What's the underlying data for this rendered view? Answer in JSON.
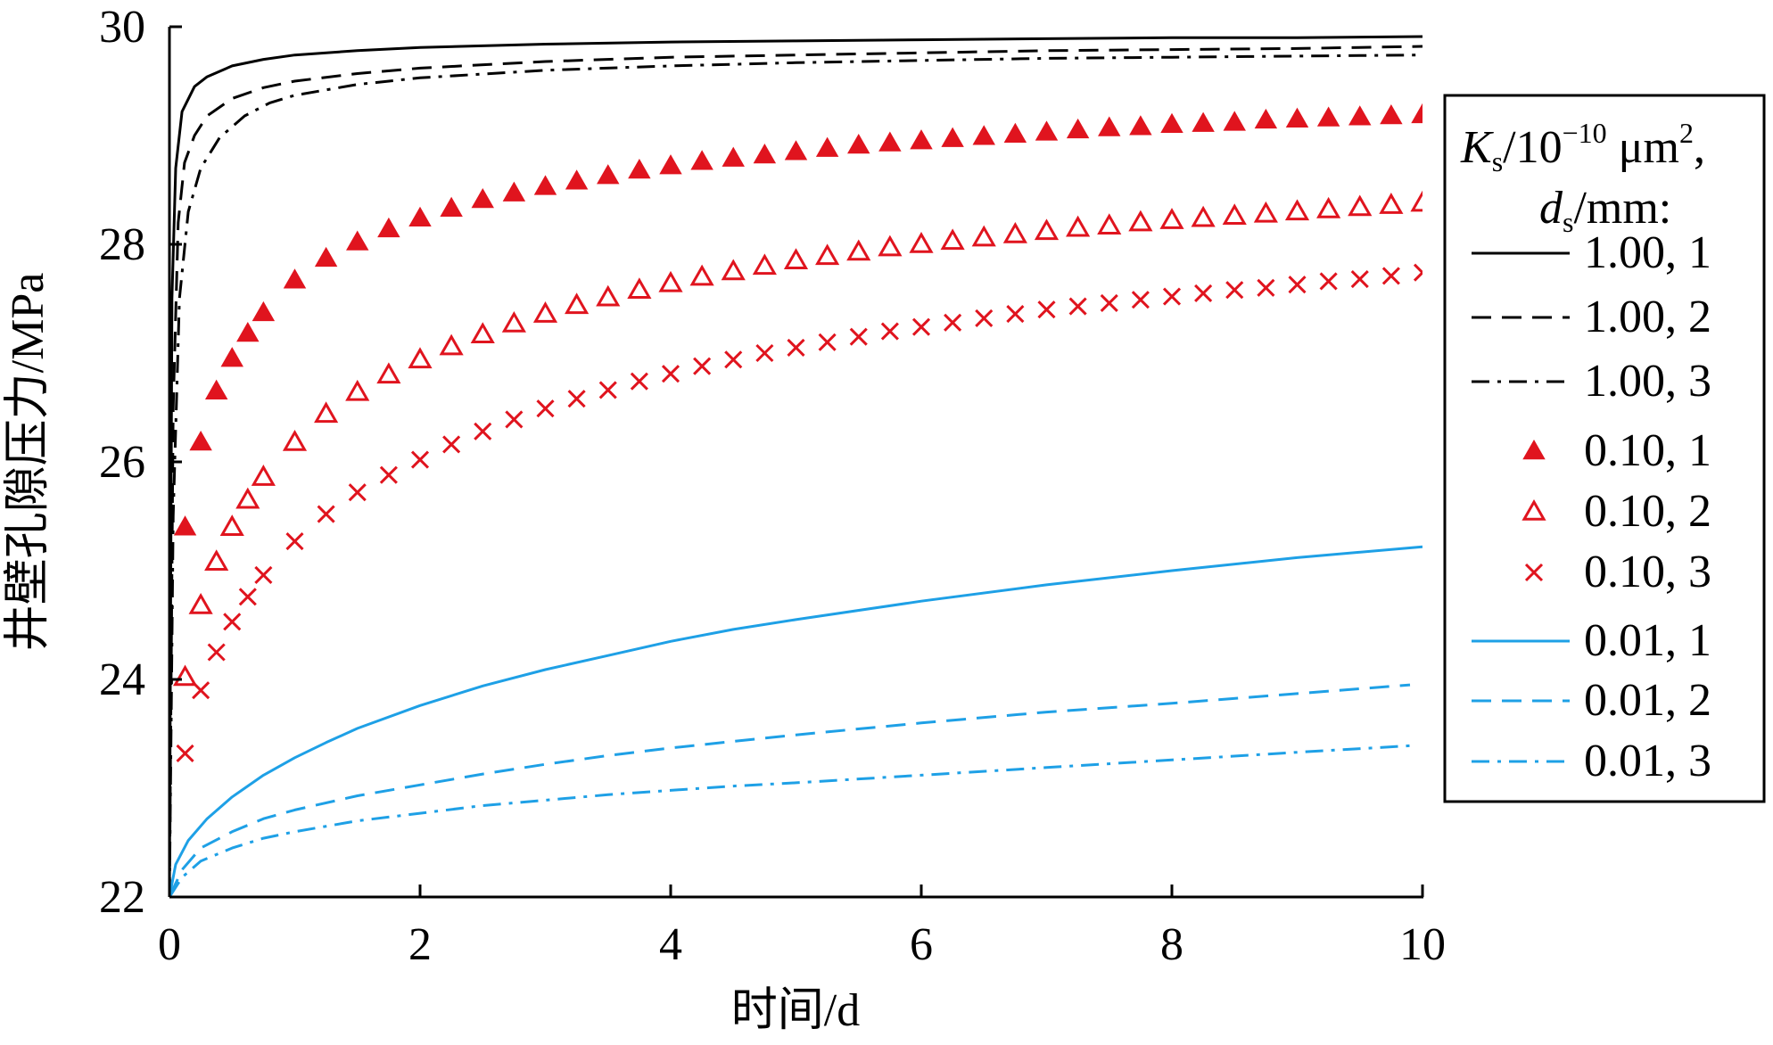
{
  "chart_data": {
    "type": "line",
    "title": "",
    "xlabel": "时间/d",
    "ylabel": "井壁孔隙压力/MPa",
    "xlim": [
      0,
      10
    ],
    "ylim": [
      22,
      30
    ],
    "x_ticks": [
      0,
      2,
      4,
      6,
      8,
      10
    ],
    "y_ticks": [
      22,
      24,
      26,
      28,
      30
    ],
    "grid": false,
    "legend": {
      "position": "right",
      "title_line1": "Ks/10−10 μm2,",
      "title_line2": "ds/mm:"
    },
    "series": [
      {
        "name": "1.00, 1",
        "color": "#000000",
        "style": "solid",
        "points": [
          [
            0,
            22
          ],
          [
            0.02,
            27.5
          ],
          [
            0.05,
            28.7
          ],
          [
            0.1,
            29.22
          ],
          [
            0.2,
            29.45
          ],
          [
            0.3,
            29.54
          ],
          [
            0.5,
            29.64
          ],
          [
            0.75,
            29.7
          ],
          [
            1,
            29.74
          ],
          [
            1.5,
            29.78
          ],
          [
            2,
            29.81
          ],
          [
            3,
            29.84
          ],
          [
            4,
            29.86
          ],
          [
            5,
            29.87
          ],
          [
            6,
            29.88
          ],
          [
            7,
            29.89
          ],
          [
            8,
            29.9
          ],
          [
            9,
            29.9
          ],
          [
            10,
            29.91
          ]
        ]
      },
      {
        "name": "1.00, 2",
        "color": "#000000",
        "style": "dashed",
        "points": [
          [
            0,
            22
          ],
          [
            0.03,
            26.5
          ],
          [
            0.07,
            28.2
          ],
          [
            0.12,
            28.75
          ],
          [
            0.2,
            29.0
          ],
          [
            0.3,
            29.18
          ],
          [
            0.5,
            29.34
          ],
          [
            0.75,
            29.44
          ],
          [
            1,
            29.5
          ],
          [
            1.5,
            29.57
          ],
          [
            2,
            29.62
          ],
          [
            3,
            29.68
          ],
          [
            4,
            29.72
          ],
          [
            5,
            29.74
          ],
          [
            6,
            29.76
          ],
          [
            7,
            29.78
          ],
          [
            8,
            29.79
          ],
          [
            9,
            29.8
          ],
          [
            10,
            29.82
          ]
        ]
      },
      {
        "name": "1.00, 3",
        "color": "#000000",
        "style": "dashdot",
        "points": [
          [
            0,
            22
          ],
          [
            0.03,
            25.5
          ],
          [
            0.08,
            27.5
          ],
          [
            0.15,
            28.3
          ],
          [
            0.25,
            28.7
          ],
          [
            0.4,
            28.98
          ],
          [
            0.6,
            29.18
          ],
          [
            0.8,
            29.3
          ],
          [
            1,
            29.37
          ],
          [
            1.5,
            29.47
          ],
          [
            2,
            29.53
          ],
          [
            3,
            29.6
          ],
          [
            4,
            29.64
          ],
          [
            5,
            29.67
          ],
          [
            6,
            29.69
          ],
          [
            7,
            29.71
          ],
          [
            8,
            29.72
          ],
          [
            9,
            29.73
          ],
          [
            10,
            29.74
          ]
        ]
      },
      {
        "name": "0.10, 1",
        "color": "#e0141e",
        "style": "marker-triangle-filled",
        "points": [
          [
            0.125,
            25.4
          ],
          [
            0.25,
            26.18
          ],
          [
            0.375,
            26.65
          ],
          [
            0.5,
            26.95
          ],
          [
            0.625,
            27.18
          ],
          [
            0.75,
            27.37
          ],
          [
            1,
            27.67
          ],
          [
            1.25,
            27.87
          ],
          [
            1.5,
            28.02
          ],
          [
            1.75,
            28.14
          ],
          [
            2,
            28.24
          ],
          [
            2.25,
            28.33
          ],
          [
            2.5,
            28.41
          ],
          [
            2.75,
            28.47
          ],
          [
            3,
            28.53
          ],
          [
            3.25,
            28.58
          ],
          [
            3.5,
            28.63
          ],
          [
            3.75,
            28.68
          ],
          [
            4,
            28.72
          ],
          [
            4.25,
            28.76
          ],
          [
            4.5,
            28.79
          ],
          [
            4.75,
            28.82
          ],
          [
            5,
            28.85
          ],
          [
            5.25,
            28.88
          ],
          [
            5.5,
            28.91
          ],
          [
            5.75,
            28.93
          ],
          [
            6,
            28.95
          ],
          [
            6.25,
            28.97
          ],
          [
            6.5,
            28.99
          ],
          [
            6.75,
            29.01
          ],
          [
            7,
            29.03
          ],
          [
            7.25,
            29.05
          ],
          [
            7.5,
            29.07
          ],
          [
            7.75,
            29.08
          ],
          [
            8,
            29.1
          ],
          [
            8.25,
            29.11
          ],
          [
            8.5,
            29.12
          ],
          [
            8.75,
            29.14
          ],
          [
            9,
            29.15
          ],
          [
            9.25,
            29.16
          ],
          [
            9.5,
            29.17
          ],
          [
            9.75,
            29.18
          ],
          [
            10,
            29.19
          ]
        ]
      },
      {
        "name": "0.10, 2",
        "color": "#e0141e",
        "style": "marker-triangle-open",
        "points": [
          [
            0.125,
            24.02
          ],
          [
            0.25,
            24.68
          ],
          [
            0.375,
            25.08
          ],
          [
            0.5,
            25.4
          ],
          [
            0.625,
            25.65
          ],
          [
            0.75,
            25.86
          ],
          [
            1,
            26.18
          ],
          [
            1.25,
            26.44
          ],
          [
            1.5,
            26.64
          ],
          [
            1.75,
            26.8
          ],
          [
            2,
            26.94
          ],
          [
            2.25,
            27.06
          ],
          [
            2.5,
            27.17
          ],
          [
            2.75,
            27.27
          ],
          [
            3,
            27.36
          ],
          [
            3.25,
            27.44
          ],
          [
            3.5,
            27.51
          ],
          [
            3.75,
            27.58
          ],
          [
            4,
            27.64
          ],
          [
            4.25,
            27.7
          ],
          [
            4.5,
            27.75
          ],
          [
            4.75,
            27.8
          ],
          [
            5,
            27.85
          ],
          [
            5.25,
            27.89
          ],
          [
            5.5,
            27.93
          ],
          [
            5.75,
            27.97
          ],
          [
            6,
            28.0
          ],
          [
            6.25,
            28.03
          ],
          [
            6.5,
            28.06
          ],
          [
            6.75,
            28.09
          ],
          [
            7,
            28.12
          ],
          [
            7.25,
            28.15
          ],
          [
            7.5,
            28.17
          ],
          [
            7.75,
            28.2
          ],
          [
            8,
            28.22
          ],
          [
            8.25,
            28.24
          ],
          [
            8.5,
            28.26
          ],
          [
            8.75,
            28.28
          ],
          [
            9,
            28.3
          ],
          [
            9.25,
            28.32
          ],
          [
            9.5,
            28.34
          ],
          [
            9.75,
            28.36
          ],
          [
            10,
            28.38
          ]
        ]
      },
      {
        "name": "0.10, 3",
        "color": "#e0141e",
        "style": "marker-cross",
        "points": [
          [
            0.125,
            23.32
          ],
          [
            0.25,
            23.9
          ],
          [
            0.375,
            24.25
          ],
          [
            0.5,
            24.53
          ],
          [
            0.625,
            24.76
          ],
          [
            0.75,
            24.96
          ],
          [
            1,
            25.27
          ],
          [
            1.25,
            25.52
          ],
          [
            1.5,
            25.72
          ],
          [
            1.75,
            25.88
          ],
          [
            2,
            26.02
          ],
          [
            2.25,
            26.16
          ],
          [
            2.5,
            26.28
          ],
          [
            2.75,
            26.39
          ],
          [
            3,
            26.49
          ],
          [
            3.25,
            26.58
          ],
          [
            3.5,
            26.66
          ],
          [
            3.75,
            26.74
          ],
          [
            4,
            26.81
          ],
          [
            4.25,
            26.88
          ],
          [
            4.5,
            26.94
          ],
          [
            4.75,
            27.0
          ],
          [
            5,
            27.05
          ],
          [
            5.25,
            27.1
          ],
          [
            5.5,
            27.15
          ],
          [
            5.75,
            27.2
          ],
          [
            6,
            27.24
          ],
          [
            6.25,
            27.28
          ],
          [
            6.5,
            27.32
          ],
          [
            6.75,
            27.36
          ],
          [
            7,
            27.4
          ],
          [
            7.25,
            27.43
          ],
          [
            7.5,
            27.46
          ],
          [
            7.75,
            27.49
          ],
          [
            8,
            27.52
          ],
          [
            8.25,
            27.55
          ],
          [
            8.5,
            27.58
          ],
          [
            8.75,
            27.6
          ],
          [
            9,
            27.63
          ],
          [
            9.25,
            27.66
          ],
          [
            9.5,
            27.68
          ],
          [
            9.75,
            27.71
          ],
          [
            10,
            27.74
          ]
        ]
      },
      {
        "name": "0.01, 1",
        "color": "#1ea0e6",
        "style": "solid",
        "points": [
          [
            0,
            22
          ],
          [
            0.05,
            22.3
          ],
          [
            0.15,
            22.52
          ],
          [
            0.3,
            22.72
          ],
          [
            0.5,
            22.92
          ],
          [
            0.75,
            23.12
          ],
          [
            1,
            23.28
          ],
          [
            1.25,
            23.42
          ],
          [
            1.5,
            23.55
          ],
          [
            2,
            23.76
          ],
          [
            2.5,
            23.94
          ],
          [
            3,
            24.09
          ],
          [
            3.5,
            24.22
          ],
          [
            4,
            24.35
          ],
          [
            4.5,
            24.46
          ],
          [
            5,
            24.55
          ],
          [
            6,
            24.72
          ],
          [
            7,
            24.87
          ],
          [
            8,
            25.0
          ],
          [
            9,
            25.12
          ],
          [
            10,
            25.22
          ]
        ]
      },
      {
        "name": "0.01, 2",
        "color": "#1ea0e6",
        "style": "dashed",
        "points": [
          [
            0,
            22
          ],
          [
            0.1,
            22.25
          ],
          [
            0.25,
            22.45
          ],
          [
            0.5,
            22.6
          ],
          [
            0.75,
            22.72
          ],
          [
            1,
            22.8
          ],
          [
            1.5,
            22.93
          ],
          [
            2,
            23.03
          ],
          [
            2.5,
            23.13
          ],
          [
            3,
            23.22
          ],
          [
            3.5,
            23.3
          ],
          [
            4,
            23.37
          ],
          [
            4.5,
            23.43
          ],
          [
            5,
            23.49
          ],
          [
            6,
            23.6
          ],
          [
            7,
            23.7
          ],
          [
            8,
            23.78
          ],
          [
            9,
            23.87
          ],
          [
            9.9,
            23.95
          ]
        ]
      },
      {
        "name": "0.01, 3",
        "color": "#1ea0e6",
        "style": "dashdot",
        "points": [
          [
            0,
            22
          ],
          [
            0.1,
            22.18
          ],
          [
            0.25,
            22.33
          ],
          [
            0.5,
            22.45
          ],
          [
            0.75,
            22.54
          ],
          [
            1,
            22.6
          ],
          [
            1.5,
            22.7
          ],
          [
            2,
            22.77
          ],
          [
            2.5,
            22.84
          ],
          [
            3,
            22.89
          ],
          [
            3.5,
            22.94
          ],
          [
            4,
            22.98
          ],
          [
            4.5,
            23.02
          ],
          [
            5,
            23.05
          ],
          [
            6,
            23.12
          ],
          [
            7,
            23.19
          ],
          [
            8,
            23.26
          ],
          [
            9,
            23.33
          ],
          [
            9.9,
            23.39
          ]
        ]
      }
    ]
  }
}
